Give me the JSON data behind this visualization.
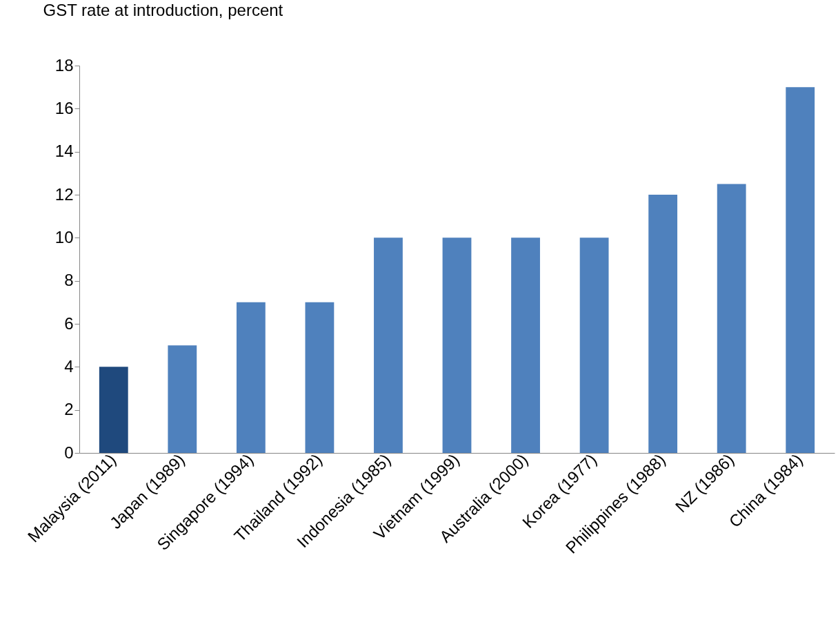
{
  "chart_data": {
    "type": "bar",
    "ylabel": "GST rate at introduction, percent",
    "categories": [
      "Malaysia (2011)",
      "Japan (1989)",
      "Singapore (1994)",
      "Thailand  (1992)",
      "Indonesia (1985)",
      "Vietnam (1999)",
      "Australia  (2000)",
      "Korea (1977)",
      "Philippines (1988)",
      "NZ (1986)",
      "China (1984)"
    ],
    "values": [
      4,
      5,
      7,
      7,
      10,
      10,
      10,
      10,
      12,
      12.5,
      17
    ],
    "colors": [
      "#1f497d",
      "#4f81bd",
      "#4f81bd",
      "#4f81bd",
      "#4f81bd",
      "#4f81bd",
      "#4f81bd",
      "#4f81bd",
      "#4f81bd",
      "#4f81bd",
      "#4f81bd"
    ],
    "ylim": [
      0,
      18
    ],
    "yticks": [
      0,
      2,
      4,
      6,
      8,
      10,
      12,
      14,
      16,
      18
    ],
    "grid": false
  }
}
